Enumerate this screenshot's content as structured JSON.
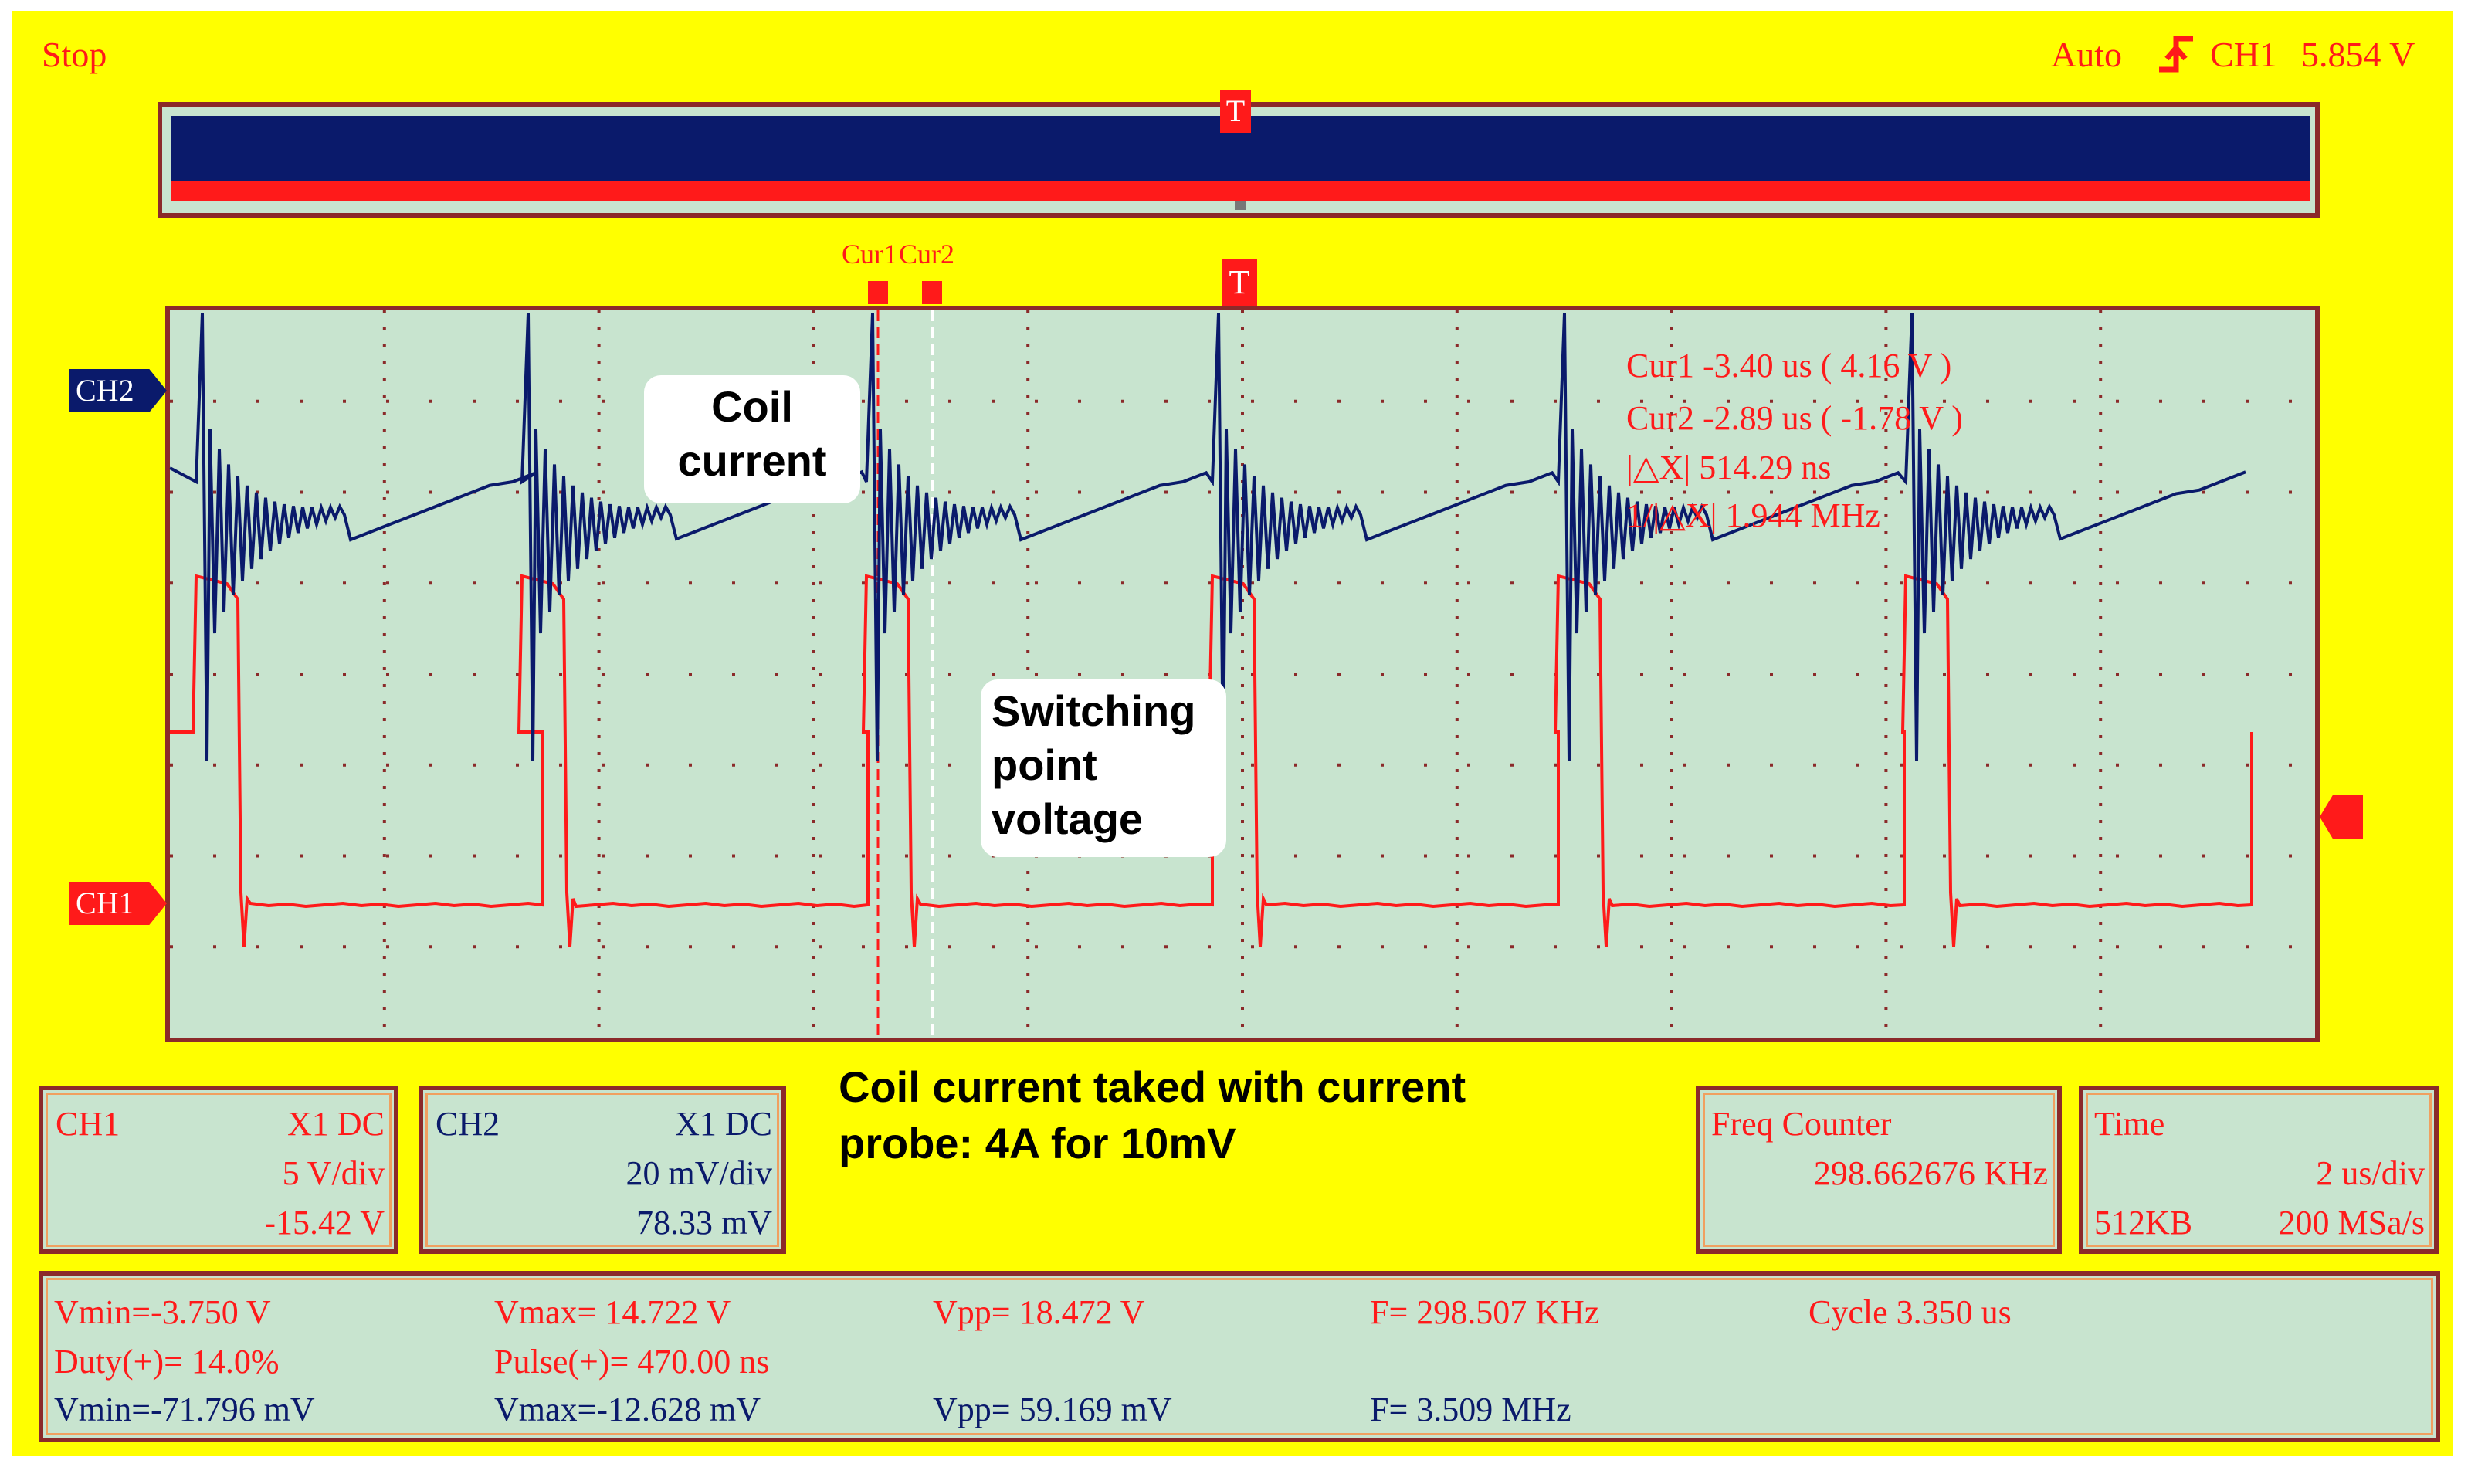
{
  "header": {
    "status": "Stop",
    "trigger_mode": "Auto",
    "trigger_channel": "CH1",
    "trigger_level": "5.854 V"
  },
  "markers": {
    "trigger": "T",
    "cursor1": "Cur1",
    "cursor2": "Cur2",
    "ch1_tag": "CH1",
    "ch2_tag": "CH2"
  },
  "cursor_readout": {
    "cur1": "Cur1   -3.40 us ( 4.16 V )",
    "cur2": "Cur2   -2.89 us ( -1.78 V )",
    "dx": "|△X|   514.29 ns",
    "inv_dx": "1/|△X|  1.944 MHz"
  },
  "annotations": {
    "coil_current": [
      "Coil",
      "current"
    ],
    "switching_voltage": [
      "Switching",
      "point",
      "voltage"
    ],
    "probe_note": [
      "Coil current taked with current",
      "probe: 4A for 10mV"
    ]
  },
  "ch1_panel": {
    "name": "CH1",
    "probe": "X1  DC",
    "scale": "5 V/div",
    "offset": "-15.42 V"
  },
  "ch2_panel": {
    "name": "CH2",
    "probe": "X1  DC",
    "scale": "20 mV/div",
    "offset": "78.33 mV"
  },
  "freq_panel": {
    "title": "Freq Counter",
    "value": "298.662676 KHz"
  },
  "time_panel": {
    "title": "Time",
    "timebase": "2 us/div",
    "memory": "512KB",
    "sample_rate": "200 MSa/s"
  },
  "measurements": {
    "row1": [
      "Vmin=-3.750 V",
      "Vmax= 14.722 V",
      "Vpp= 18.472 V",
      "F= 298.507 KHz",
      "Cycle 3.350 us"
    ],
    "row2": [
      "Duty(+)= 14.0%",
      "Pulse(+)= 470.00 ns"
    ],
    "row3": [
      "Vmin=-71.796 mV",
      "Vmax=-12.628 mV",
      "Vpp= 59.169 mV",
      "F= 3.509 MHz"
    ]
  },
  "colors": {
    "background": "#ffff00",
    "screen": "#c8e4cf",
    "ch1": "#ff1a1a",
    "ch2": "#0a1a6b",
    "border": "#8b2a2a"
  }
}
